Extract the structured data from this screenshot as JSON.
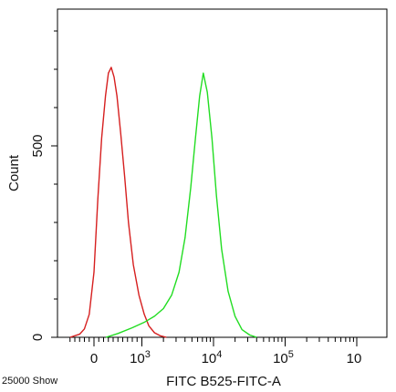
{
  "chart_data": {
    "type": "line",
    "xlabel": "FITC B525-FITC-A",
    "ylabel": "Count",
    "x_scale": "logicle",
    "x_ticks": [
      "0",
      "10^3",
      "10^4",
      "10^5",
      "10"
    ],
    "y_ticks": [
      0,
      500
    ],
    "ylim": [
      0,
      820
    ],
    "grid": false,
    "legend": "none",
    "footer_note": "25000 Show",
    "series": [
      {
        "color": "#d61f1f",
        "x": [
          -500,
          -300,
          -200,
          -100,
          0,
          80,
          160,
          240,
          300,
          360,
          420,
          480,
          560,
          640,
          720,
          820,
          940,
          1080,
          1250,
          1500,
          1800,
          2200
        ],
        "y": [
          0,
          8,
          22,
          60,
          170,
          360,
          520,
          630,
          690,
          705,
          680,
          630,
          530,
          420,
          300,
          190,
          110,
          60,
          30,
          12,
          4,
          0
        ]
      },
      {
        "color": "#22dd22",
        "x": [
          250,
          500,
          800,
          1100,
          1500,
          2000,
          2600,
          3300,
          4000,
          4800,
          5600,
          6400,
          7200,
          8200,
          9500,
          11000,
          13000,
          16000,
          20000,
          25000,
          32000,
          40000
        ],
        "y": [
          0,
          10,
          25,
          40,
          55,
          75,
          110,
          170,
          260,
          390,
          520,
          630,
          690,
          640,
          520,
          370,
          230,
          120,
          55,
          20,
          6,
          0
        ]
      }
    ]
  }
}
